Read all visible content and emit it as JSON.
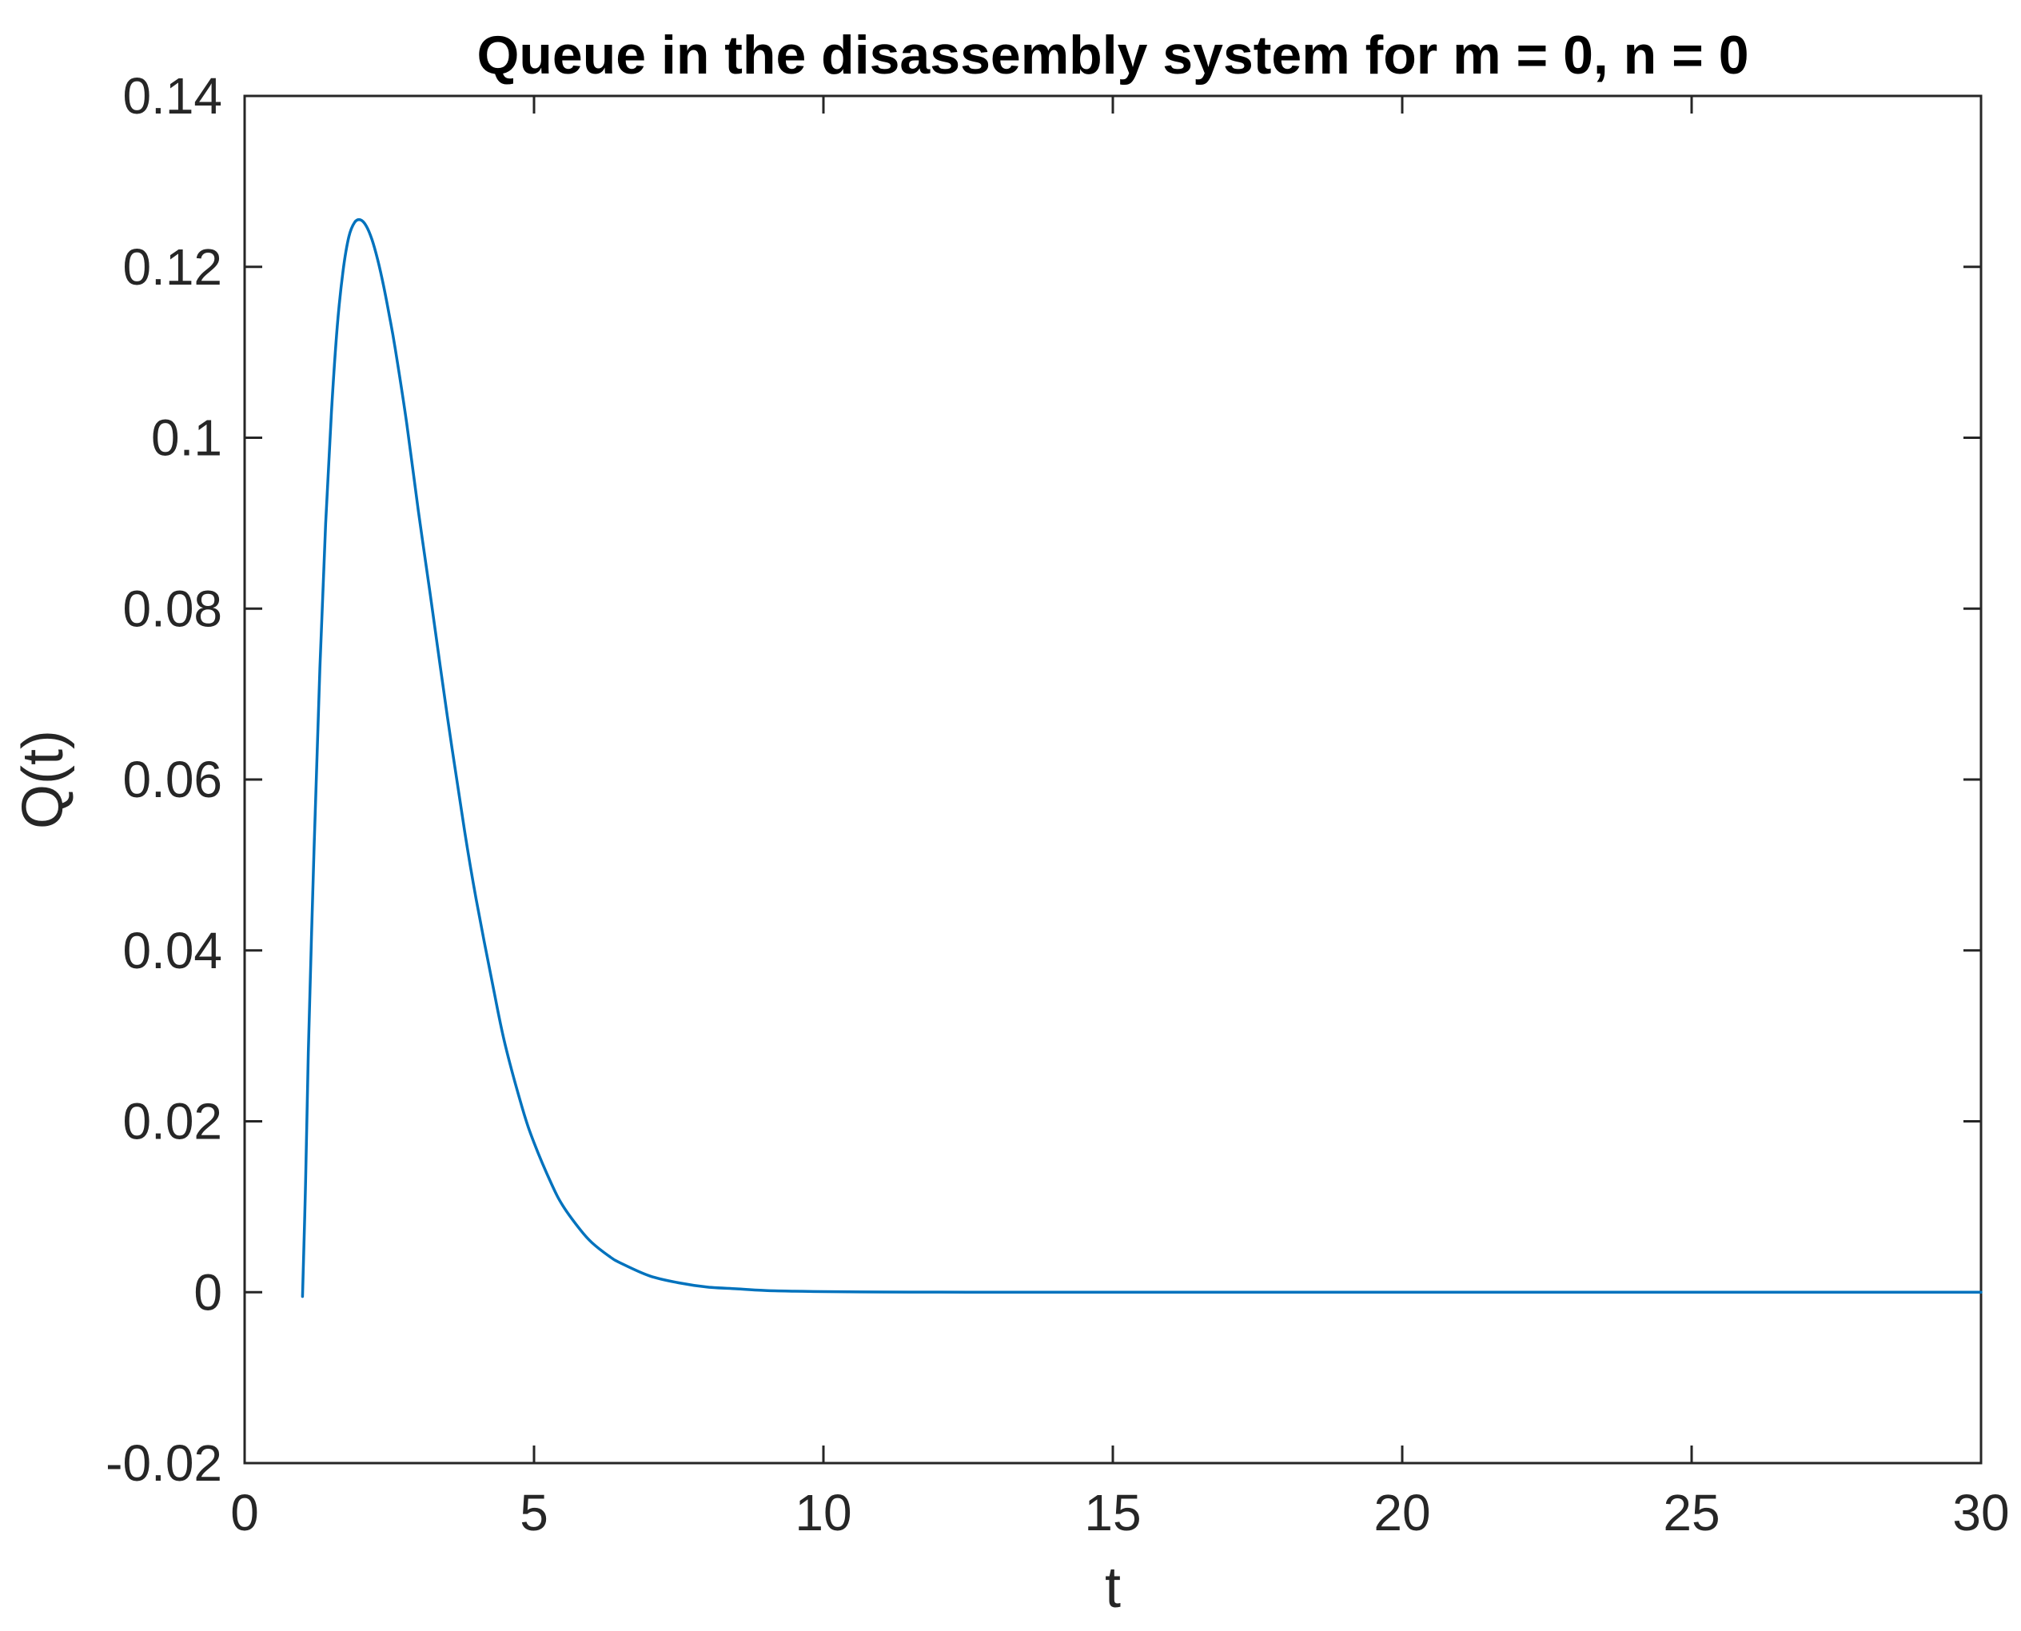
{
  "chart_data": {
    "type": "line",
    "title": "Queue in the disassembly system for m = 0, n = 0",
    "xlabel": "t",
    "ylabel": "Q(t)",
    "xlim": [
      0,
      30
    ],
    "ylim": [
      -0.02,
      0.14
    ],
    "xticks": [
      0,
      5,
      10,
      15,
      20,
      25,
      30
    ],
    "xtick_labels": [
      "0",
      "5",
      "10",
      "15",
      "20",
      "25",
      "30"
    ],
    "yticks": [
      -0.02,
      0,
      0.02,
      0.04,
      0.06,
      0.08,
      0.1,
      0.12,
      0.14
    ],
    "ytick_labels": [
      "-0.02",
      "0",
      "0.02",
      "0.04",
      "0.06",
      "0.08",
      "0.1",
      "0.12",
      "0.14"
    ],
    "grid": false,
    "line_color": "#0072BD",
    "series": [
      {
        "x": [
          1.0,
          1.05,
          1.1,
          1.2,
          1.3,
          1.4,
          1.5,
          1.6,
          1.7,
          1.8,
          1.9,
          2.0,
          2.1,
          2.2,
          2.3,
          2.4,
          2.5,
          2.6,
          2.8,
          3.0,
          3.2,
          3.5,
          3.8,
          4.0,
          4.3,
          4.5,
          4.8,
          5.0,
          5.3,
          5.5,
          5.8,
          6.0,
          6.3,
          6.5,
          7.0,
          7.5,
          8.0,
          8.5,
          9.0,
          9.5,
          10.0,
          11.0,
          12.0,
          13.0,
          14.0,
          15.0,
          20.0,
          25.0,
          30.0
        ],
        "y": [
          -0.0005,
          0.012,
          0.028,
          0.052,
          0.073,
          0.09,
          0.103,
          0.113,
          0.1195,
          0.1235,
          0.1252,
          0.1255,
          0.1248,
          0.1232,
          0.1208,
          0.1178,
          0.1143,
          0.1105,
          0.1017,
          0.0915,
          0.082,
          0.0675,
          0.054,
          0.046,
          0.0355,
          0.029,
          0.0215,
          0.0175,
          0.0127,
          0.0101,
          0.0073,
          0.0058,
          0.0042,
          0.0034,
          0.0019,
          0.0011,
          0.0006,
          0.0004,
          0.0002,
          0.00012,
          7e-05,
          2e-05,
          1e-05,
          0.0,
          0.0,
          0.0,
          0.0,
          0.0,
          0.0
        ]
      }
    ]
  }
}
